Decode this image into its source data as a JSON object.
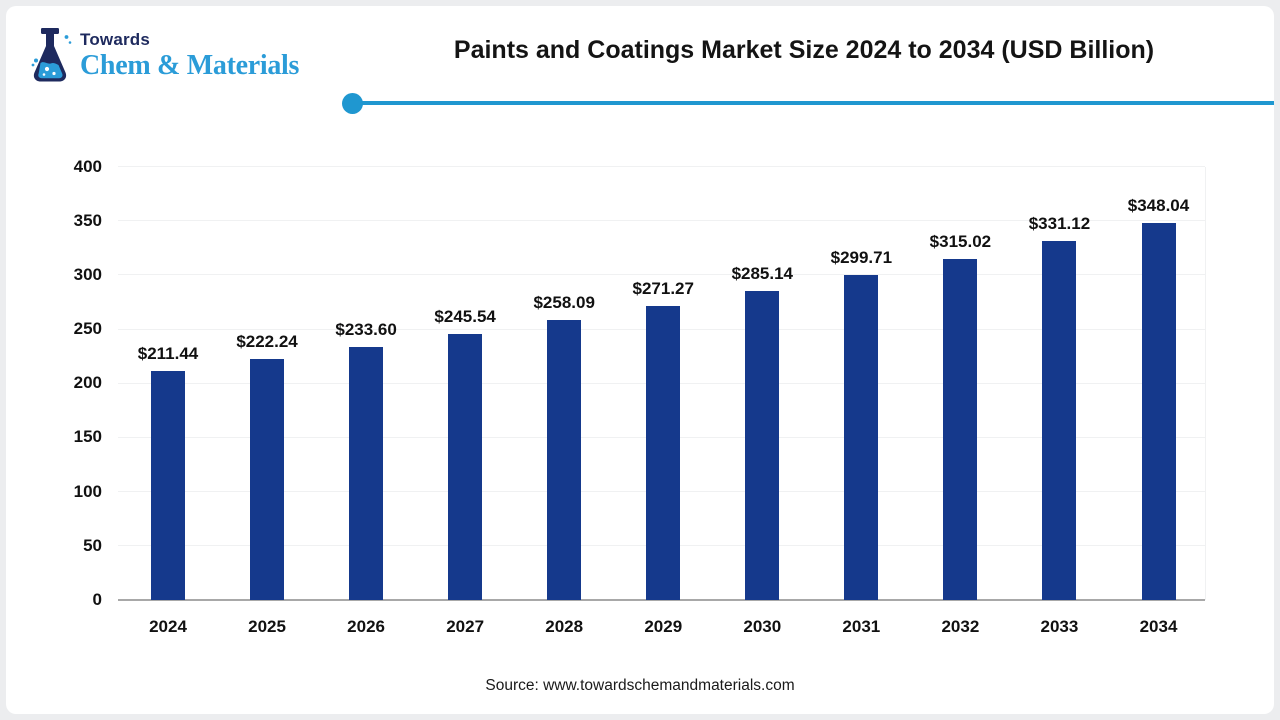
{
  "brand": {
    "name_top": "Towards",
    "name_bottom": "Chem & Materials",
    "navy_color": "#1e2a5e",
    "blue_color": "#2b9cd8"
  },
  "header": {
    "title": "Paints and Coatings Market Size 2024 to 2034 (USD Billion)",
    "rule_color": "#1f97d0"
  },
  "chart_data": {
    "type": "bar",
    "title": "Paints and Coatings Market Size 2024 to 2034 (USD Billion)",
    "categories": [
      "2024",
      "2025",
      "2026",
      "2027",
      "2028",
      "2029",
      "2030",
      "2031",
      "2032",
      "2033",
      "2034"
    ],
    "values": [
      211.44,
      222.24,
      233.6,
      245.54,
      258.09,
      271.27,
      285.14,
      299.71,
      315.02,
      331.12,
      348.04
    ],
    "value_labels": [
      "$211.44",
      "$222.24",
      "$233.60",
      "$245.54",
      "$258.09",
      "$271.27",
      "$285.14",
      "$299.71",
      "$315.02",
      "$331.12",
      "$348.04"
    ],
    "xlabel": "",
    "ylabel": "",
    "ylim": [
      0,
      400
    ],
    "ytick_step": 50,
    "grid": true,
    "legend": false,
    "bar_color": "#15398c",
    "grid_color": "#f0f1f2",
    "axis_color": "#a8a8a8"
  },
  "footer": {
    "source": "Source: www.towardschemandmaterials.com"
  }
}
